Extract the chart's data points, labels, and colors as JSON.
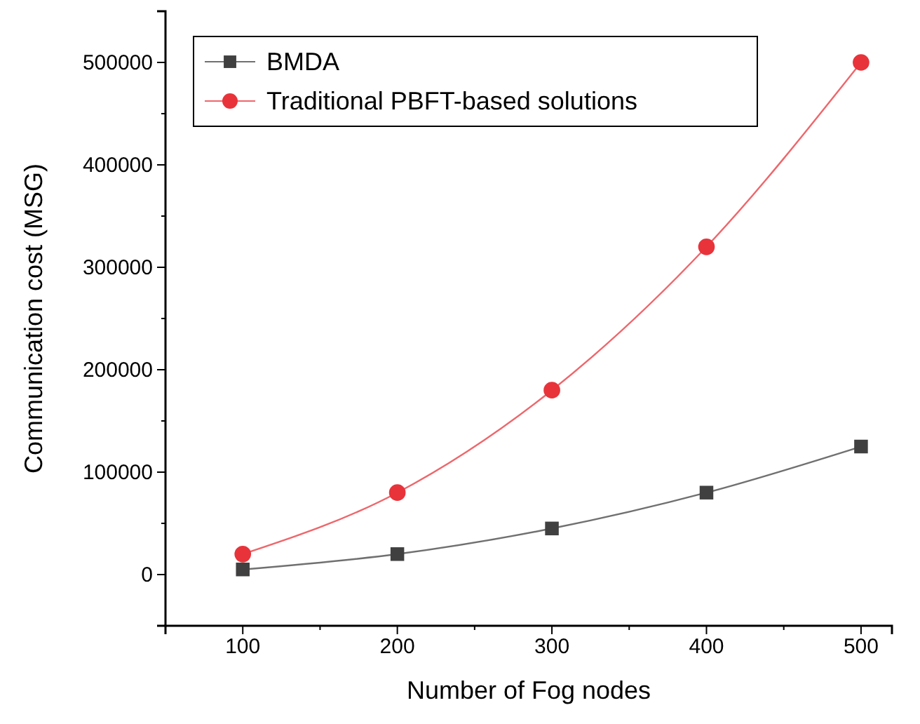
{
  "chart_data": {
    "type": "line",
    "xlabel": "Number of Fog nodes",
    "ylabel": "Communication cost (MSG)",
    "x": [
      100,
      200,
      300,
      400,
      500
    ],
    "series": [
      {
        "name": "BMDA",
        "color": "#404040",
        "marker": "square",
        "values": [
          5000,
          20000,
          45000,
          80000,
          125000
        ]
      },
      {
        "name": "Traditional PBFT-based solutions",
        "color": "#e8333a",
        "marker": "circle",
        "values": [
          20000,
          80000,
          180000,
          320000,
          500000
        ]
      }
    ],
    "xlim": [
      50,
      520
    ],
    "xticks": [
      100,
      200,
      300,
      400,
      500
    ],
    "ylim": [
      -50000,
      550000
    ],
    "yticks": [
      0,
      100000,
      200000,
      300000,
      400000,
      500000
    ],
    "grid": false,
    "legend": "top left",
    "line_style": "solid"
  }
}
